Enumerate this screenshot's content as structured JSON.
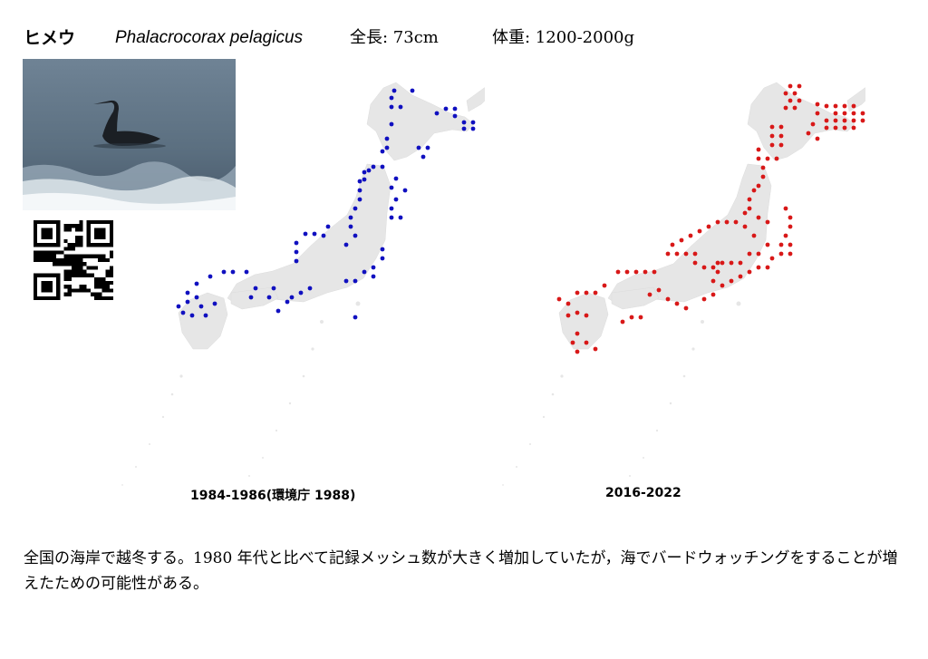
{
  "header": {
    "name_ja": "ヒメウ",
    "scientific_name": "Phalacrocorax pelagicus",
    "length": "全長: 73cm",
    "weight": "体重: 1200-2000g"
  },
  "maps": [
    {
      "caption": "1984-1986(環境庁 1988)",
      "dot_color": "#1010c0"
    },
    {
      "caption": "2016-2022",
      "dot_color": "#d81818"
    }
  ],
  "description": "全国の海岸で越冬する。1980 年代と比べて記録メッシュ数が大きく増加していたが，海でバードウォッチングをすることが増えたための可能性がある。"
}
